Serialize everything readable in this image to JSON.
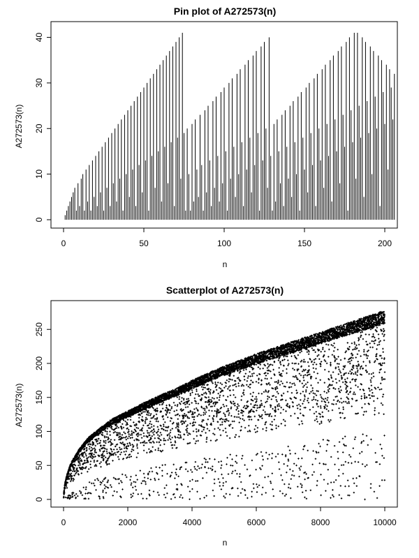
{
  "chart_data": [
    {
      "type": "bar",
      "title": "Pin plot of A272573(n)",
      "xlabel": "n",
      "ylabel": "A272573(n)",
      "xlim": [
        0,
        200
      ],
      "ylim": [
        0,
        41
      ],
      "xticks": [
        0,
        50,
        100,
        150,
        200
      ],
      "yticks": [
        0,
        10,
        20,
        30,
        40
      ],
      "grid": false,
      "legend": "none",
      "series": [
        {
          "x_start": 1,
          "values": [
            1,
            2,
            3,
            4,
            5,
            6,
            7,
            2,
            8,
            3,
            9,
            10,
            2,
            11,
            4,
            12,
            2,
            13,
            5,
            14,
            3,
            15,
            6,
            16,
            2,
            17,
            7,
            18,
            3,
            19,
            8,
            20,
            4,
            21,
            9,
            22,
            2,
            23,
            10,
            24,
            5,
            25,
            11,
            26,
            3,
            27,
            12,
            28,
            6,
            29,
            13,
            30,
            2,
            31,
            14,
            32,
            7,
            33,
            15,
            34,
            4,
            35,
            16,
            36,
            8,
            37,
            17,
            38,
            3,
            39,
            18,
            40,
            9,
            41,
            19,
            2,
            20,
            10,
            2,
            21,
            4,
            22,
            11,
            5,
            23,
            12,
            2,
            24,
            6,
            25,
            13,
            3,
            26,
            7,
            27,
            14,
            4,
            28,
            8,
            29,
            15,
            2,
            30,
            9,
            31,
            16,
            5,
            32,
            10,
            33,
            17,
            3,
            34,
            11,
            35,
            18,
            6,
            36,
            12,
            37,
            19,
            2,
            38,
            13,
            39,
            20,
            7,
            40,
            14,
            2,
            21,
            4,
            22,
            15,
            8,
            23,
            3,
            24,
            16,
            9,
            25,
            5,
            26,
            17,
            10,
            27,
            2,
            28,
            18,
            11,
            29,
            6,
            30,
            19,
            12,
            31,
            3,
            32,
            20,
            13,
            33,
            7,
            34,
            21,
            14,
            35,
            4,
            36,
            22,
            15,
            37,
            8,
            38,
            23,
            16,
            39,
            2,
            40,
            24,
            17,
            41,
            9,
            41,
            25,
            18,
            40,
            5,
            39,
            26,
            19,
            38,
            10,
            37,
            27,
            20,
            36,
            3,
            35,
            28,
            21,
            34,
            11,
            33,
            29,
            22,
            32
          ]
        }
      ]
    },
    {
      "type": "scatter",
      "title": "Scatterplot of A272573(n)",
      "xlabel": "n",
      "ylabel": "A272573(n)",
      "xlim": [
        0,
        10000
      ],
      "ylim": [
        0,
        280
      ],
      "xticks": [
        0,
        2000,
        4000,
        6000,
        8000,
        10000
      ],
      "yticks": [
        0,
        50,
        100,
        150,
        200,
        250
      ],
      "grid": false,
      "legend": "none",
      "marker": "+",
      "series": [
        {
          "upper_envelope": [
            [
              10,
              10
            ],
            [
              50,
              25
            ],
            [
              100,
              35
            ],
            [
              200,
              50
            ],
            [
              300,
              60
            ],
            [
              500,
              75
            ],
            [
              750,
              90
            ],
            [
              1000,
              100
            ],
            [
              1500,
              118
            ],
            [
              2000,
              130
            ],
            [
              2500,
              142
            ],
            [
              3000,
              153
            ],
            [
              3500,
              163
            ],
            [
              4000,
              175
            ],
            [
              4500,
              186
            ],
            [
              5000,
              196
            ],
            [
              5500,
              205
            ],
            [
              6000,
              214
            ],
            [
              6500,
              222
            ],
            [
              7000,
              230
            ],
            [
              7500,
              238
            ],
            [
              8000,
              246
            ],
            [
              8500,
              254
            ],
            [
              9000,
              262
            ],
            [
              9500,
              270
            ],
            [
              10000,
              278
            ]
          ],
          "lower_band": [
            [
              100,
              5
            ],
            [
              500,
              20
            ],
            [
              1000,
              30
            ],
            [
              2000,
              40
            ],
            [
              3000,
              50
            ],
            [
              4000,
              58
            ],
            [
              5000,
              65
            ],
            [
              6000,
              72
            ],
            [
              7000,
              80
            ],
            [
              8000,
              88
            ],
            [
              9000,
              95
            ],
            [
              10000,
              105
            ]
          ]
        }
      ]
    }
  ]
}
